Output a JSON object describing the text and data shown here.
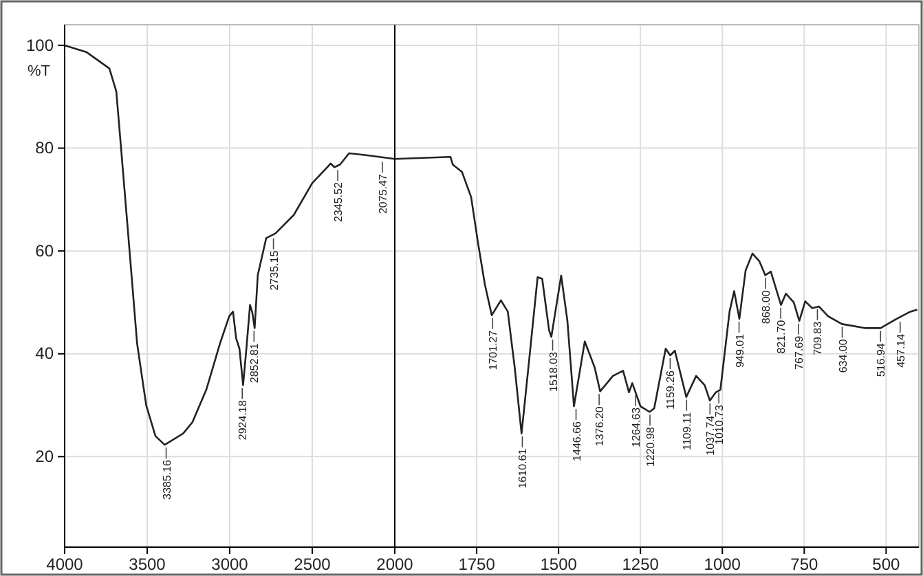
{
  "chart_data": [
    {
      "type": "line",
      "ylabel": "%T",
      "xlim": [
        4000,
        2000
      ],
      "xticks": [
        4000,
        3500,
        3000,
        2500,
        2000
      ],
      "ylim": [
        2.4,
        104
      ],
      "yticks": [
        20,
        40,
        60,
        80,
        100
      ],
      "grid": true,
      "line_style": "solid",
      "series": [
        {
          "color": "#222222",
          "x": [
            4000,
            3869,
            3729,
            3687,
            3659,
            3617,
            3561,
            3506,
            3450,
            3394,
            3282,
            3226,
            3142,
            3059,
            3003,
            2980,
            2961,
            2941,
            2919,
            2899,
            2877,
            2863,
            2849,
            2830,
            2779,
            2723,
            2612,
            2500,
            2388,
            2366,
            2332,
            2277,
            2165,
            2000
          ],
          "values": [
            100,
            98.7,
            95.5,
            91,
            80.3,
            64,
            42,
            30,
            24,
            22.3,
            24.5,
            26.7,
            33,
            42,
            47.3,
            48.2,
            43,
            41,
            33.9,
            41,
            49.5,
            48,
            45,
            55.3,
            62.5,
            63.4,
            67,
            73.2,
            77,
            76.3,
            76.8,
            79,
            78.6,
            77.9
          ]
        }
      ],
      "annotations": [
        {
          "text": "3385.16",
          "x": 3385.16,
          "y": 22.3
        },
        {
          "text": "2924.18",
          "x": 2924.18,
          "y": 33.9
        },
        {
          "text": "2852.81",
          "x": 2852.81,
          "y": 45
        },
        {
          "text": "2735.15",
          "x": 2735.15,
          "y": 63
        },
        {
          "text": "2345.52",
          "x": 2345.52,
          "y": 76.3
        },
        {
          "text": "2075.47",
          "x": 2075.47,
          "y": 77.9
        }
      ]
    },
    {
      "type": "line",
      "tick_labels": "x",
      "xlim": [
        2000,
        400
      ],
      "xticks": [
        {
          "value": 2000,
          "label": null
        },
        1750,
        1500,
        1250,
        1000,
        750,
        500
      ],
      "ylim": [
        2.4,
        104
      ],
      "yticks": [
        {
          "value": 20,
          "label": null
        },
        {
          "value": 40,
          "label": null
        },
        {
          "value": 60,
          "label": null
        },
        {
          "value": 80,
          "label": null
        },
        {
          "value": 100,
          "label": null
        }
      ],
      "grid": true,
      "line_style": "solid",
      "series": [
        {
          "color": "#222222",
          "x": [
            2000,
            1830,
            1823,
            1795,
            1767,
            1746,
            1725,
            1704,
            1676,
            1655,
            1634,
            1613,
            1592,
            1564,
            1550,
            1529,
            1522,
            1512,
            1492,
            1473,
            1453,
            1420,
            1390,
            1373,
            1334,
            1303,
            1285,
            1275,
            1250,
            1222,
            1208,
            1173,
            1159,
            1145,
            1110,
            1080,
            1054,
            1038,
            1020,
            1006,
            978,
            964,
            948,
            929,
            908,
            887,
            869,
            852,
            821,
            806,
            782,
            765,
            747,
            726,
            705,
            677,
            635,
            565,
            517,
            468,
            426,
            405
          ],
          "values": [
            77.9,
            78.3,
            76.8,
            75.4,
            70.5,
            61.6,
            53.5,
            47.5,
            50.4,
            48.2,
            37.4,
            24.5,
            37.4,
            54.9,
            54.6,
            44.6,
            43.3,
            47.3,
            55.2,
            46.4,
            29.8,
            42.4,
            37.4,
            32.7,
            35.7,
            36.7,
            32.5,
            34.3,
            29.8,
            28.7,
            29.4,
            41,
            39.7,
            40.6,
            31.6,
            35.7,
            33.9,
            30.9,
            32.5,
            33,
            48.2,
            52.2,
            46.8,
            56.2,
            59.5,
            58,
            55.3,
            56,
            49.5,
            51.7,
            50,
            46.4,
            50.2,
            48.9,
            49.2,
            47.3,
            45.8,
            45,
            45,
            46.8,
            48.2,
            48.6
          ]
        }
      ],
      "annotations": [
        {
          "text": "1701.27",
          "x": 1701.27,
          "y": 47.5
        },
        {
          "text": "1610.61",
          "x": 1610.61,
          "y": 24.5
        },
        {
          "text": "1518.03",
          "x": 1518.03,
          "y": 43.3
        },
        {
          "text": "1446.66",
          "x": 1446.66,
          "y": 29.8
        },
        {
          "text": "1376.20",
          "x": 1376.2,
          "y": 32.7
        },
        {
          "text": "1264.63",
          "x": 1264.63,
          "y": 32.5
        },
        {
          "text": "1220.98",
          "x": 1220.98,
          "y": 28.7
        },
        {
          "text": "1159.26",
          "x": 1159.26,
          "y": 39.7
        },
        {
          "text": "1109.11",
          "x": 1109.11,
          "y": 31.6
        },
        {
          "text": "1037.74",
          "x": 1037.74,
          "y": 30.9
        },
        {
          "text": "1010.73",
          "x": 1010.73,
          "y": 33
        },
        {
          "text": "949.01",
          "x": 949.01,
          "y": 46.8
        },
        {
          "text": "868.00",
          "x": 868,
          "y": 55.3
        },
        {
          "text": "821.70",
          "x": 821.7,
          "y": 49.5
        },
        {
          "text": "767.69",
          "x": 767.69,
          "y": 46.4
        },
        {
          "text": "709.83",
          "x": 709.83,
          "y": 49.2
        },
        {
          "text": "634.00",
          "x": 634,
          "y": 45.8
        },
        {
          "text": "516.94",
          "x": 516.94,
          "y": 45
        },
        {
          "text": "457.14",
          "x": 457.14,
          "y": 46.8
        }
      ]
    }
  ]
}
